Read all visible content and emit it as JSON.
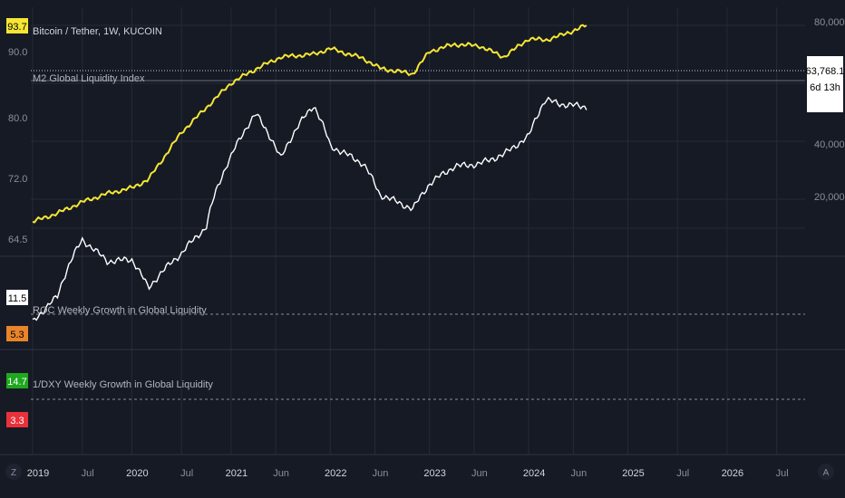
{
  "colors": {
    "background": "#161a25",
    "grid": "#252a36",
    "axis_text": "#8a8f9c",
    "price": "#ffffff",
    "m2": "#f5e633",
    "roc": "#ffffff",
    "roc_ma": "#e8842a",
    "dxy": "#1fa81f",
    "dxy_ma": "#e8313a"
  },
  "header": {
    "symbol": "Bitcoin / Tether, 1W, KUCOIN",
    "indicator": "M2 Global Liquidity Index"
  },
  "left_scale": {
    "badge_value": "93.7",
    "ticks": [
      "90.0",
      "80.0",
      "72.0",
      "64.5"
    ]
  },
  "right_scale": {
    "ticks": [
      "80,000.0",
      "40,000.0",
      "20,000.0"
    ],
    "price_label": "63,768.1",
    "countdown": "6d 13h"
  },
  "pane2": {
    "title": "ROC Weekly Growth in Global Liquidity",
    "badge_white": "11.5",
    "badge_orange": "5.3"
  },
  "pane3": {
    "title": "1/DXY Weekly Growth in Global Liquidity",
    "badge_green": "14.7",
    "badge_red": "3.3"
  },
  "x_axis": {
    "labels": [
      "2019",
      "Jul",
      "2020",
      "Jul",
      "2021",
      "Jun",
      "2022",
      "Jun",
      "2023",
      "Jun",
      "2024",
      "Jun",
      "2025",
      "Jul",
      "2026",
      "Jul"
    ],
    "left_btn": "Z",
    "right_btn": "A"
  },
  "chart_data": [
    {
      "type": "line",
      "title": "Bitcoin / Tether, 1W, KUCOIN",
      "x": [
        "2019-01",
        "2019-04",
        "2019-07",
        "2019-10",
        "2020-01",
        "2020-03",
        "2020-07",
        "2020-10",
        "2021-01",
        "2021-04",
        "2021-07",
        "2021-11",
        "2022-01",
        "2022-05",
        "2022-07",
        "2022-11",
        "2023-01",
        "2023-04",
        "2023-07",
        "2023-10",
        "2024-01",
        "2024-03",
        "2024-05",
        "2024-08"
      ],
      "series": [
        {
          "name": "Bitcoin / Tether",
          "values": [
            3700,
            5200,
            11000,
            8300,
            8500,
            5800,
            9200,
            13000,
            33000,
            58000,
            32000,
            65000,
            38000,
            30000,
            20000,
            16500,
            23000,
            29000,
            30000,
            34000,
            43000,
            70000,
            66000,
            63768
          ]
        },
        {
          "name": "M2 Global Liquidity Index",
          "values": [
            65.8,
            67.0,
            68.6,
            69.8,
            70.6,
            71.8,
            78.5,
            82.0,
            85.5,
            87.5,
            89.2,
            89.6,
            90.4,
            89.0,
            87.6,
            86.8,
            90.0,
            91.0,
            90.8,
            89.2,
            91.8,
            91.6,
            92.3,
            93.7
          ]
        }
      ],
      "y_right_ticks": [
        20000,
        40000,
        80000
      ],
      "y_left_ticks": [
        64.5,
        72.0,
        80.0,
        90.0
      ]
    },
    {
      "type": "line",
      "title": "ROC Weekly Growth in Global Liquidity",
      "series_last_values": [
        11.5,
        5.3
      ]
    },
    {
      "type": "line",
      "title": "1/DXY Weekly Growth in Global Liquidity",
      "series_last_values": [
        14.7,
        3.3
      ]
    }
  ]
}
